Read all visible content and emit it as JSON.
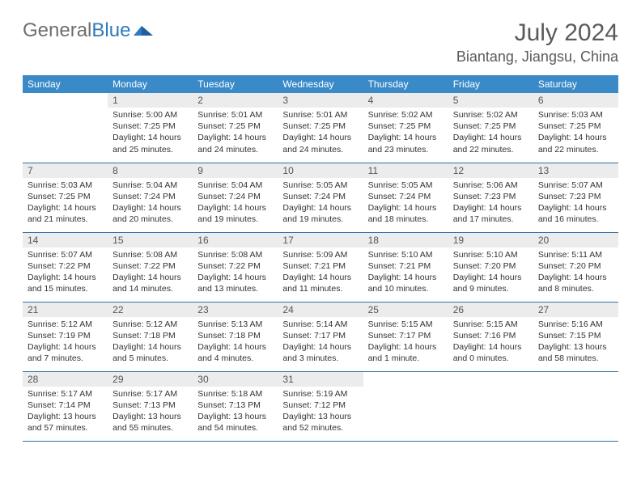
{
  "logo": {
    "word1": "General",
    "word2": "Blue"
  },
  "header": {
    "title": "July 2024",
    "location": "Biantang, Jiangsu, China"
  },
  "colors": {
    "header_bg": "#3a8ac8",
    "daynum_bg": "#ececec",
    "row_border": "#2f6fa8",
    "logo_gray": "#6e6e6e",
    "logo_blue": "#2f7bbf"
  },
  "weekdays": [
    "Sunday",
    "Monday",
    "Tuesday",
    "Wednesday",
    "Thursday",
    "Friday",
    "Saturday"
  ],
  "firstDayOffset": 1,
  "days": [
    {
      "n": 1,
      "sunrise": "5:00 AM",
      "sunset": "7:25 PM",
      "daylight": "14 hours and 25 minutes."
    },
    {
      "n": 2,
      "sunrise": "5:01 AM",
      "sunset": "7:25 PM",
      "daylight": "14 hours and 24 minutes."
    },
    {
      "n": 3,
      "sunrise": "5:01 AM",
      "sunset": "7:25 PM",
      "daylight": "14 hours and 24 minutes."
    },
    {
      "n": 4,
      "sunrise": "5:02 AM",
      "sunset": "7:25 PM",
      "daylight": "14 hours and 23 minutes."
    },
    {
      "n": 5,
      "sunrise": "5:02 AM",
      "sunset": "7:25 PM",
      "daylight": "14 hours and 22 minutes."
    },
    {
      "n": 6,
      "sunrise": "5:03 AM",
      "sunset": "7:25 PM",
      "daylight": "14 hours and 22 minutes."
    },
    {
      "n": 7,
      "sunrise": "5:03 AM",
      "sunset": "7:25 PM",
      "daylight": "14 hours and 21 minutes."
    },
    {
      "n": 8,
      "sunrise": "5:04 AM",
      "sunset": "7:24 PM",
      "daylight": "14 hours and 20 minutes."
    },
    {
      "n": 9,
      "sunrise": "5:04 AM",
      "sunset": "7:24 PM",
      "daylight": "14 hours and 19 minutes."
    },
    {
      "n": 10,
      "sunrise": "5:05 AM",
      "sunset": "7:24 PM",
      "daylight": "14 hours and 19 minutes."
    },
    {
      "n": 11,
      "sunrise": "5:05 AM",
      "sunset": "7:24 PM",
      "daylight": "14 hours and 18 minutes."
    },
    {
      "n": 12,
      "sunrise": "5:06 AM",
      "sunset": "7:23 PM",
      "daylight": "14 hours and 17 minutes."
    },
    {
      "n": 13,
      "sunrise": "5:07 AM",
      "sunset": "7:23 PM",
      "daylight": "14 hours and 16 minutes."
    },
    {
      "n": 14,
      "sunrise": "5:07 AM",
      "sunset": "7:22 PM",
      "daylight": "14 hours and 15 minutes."
    },
    {
      "n": 15,
      "sunrise": "5:08 AM",
      "sunset": "7:22 PM",
      "daylight": "14 hours and 14 minutes."
    },
    {
      "n": 16,
      "sunrise": "5:08 AM",
      "sunset": "7:22 PM",
      "daylight": "14 hours and 13 minutes."
    },
    {
      "n": 17,
      "sunrise": "5:09 AM",
      "sunset": "7:21 PM",
      "daylight": "14 hours and 11 minutes."
    },
    {
      "n": 18,
      "sunrise": "5:10 AM",
      "sunset": "7:21 PM",
      "daylight": "14 hours and 10 minutes."
    },
    {
      "n": 19,
      "sunrise": "5:10 AM",
      "sunset": "7:20 PM",
      "daylight": "14 hours and 9 minutes."
    },
    {
      "n": 20,
      "sunrise": "5:11 AM",
      "sunset": "7:20 PM",
      "daylight": "14 hours and 8 minutes."
    },
    {
      "n": 21,
      "sunrise": "5:12 AM",
      "sunset": "7:19 PM",
      "daylight": "14 hours and 7 minutes."
    },
    {
      "n": 22,
      "sunrise": "5:12 AM",
      "sunset": "7:18 PM",
      "daylight": "14 hours and 5 minutes."
    },
    {
      "n": 23,
      "sunrise": "5:13 AM",
      "sunset": "7:18 PM",
      "daylight": "14 hours and 4 minutes."
    },
    {
      "n": 24,
      "sunrise": "5:14 AM",
      "sunset": "7:17 PM",
      "daylight": "14 hours and 3 minutes."
    },
    {
      "n": 25,
      "sunrise": "5:15 AM",
      "sunset": "7:17 PM",
      "daylight": "14 hours and 1 minute."
    },
    {
      "n": 26,
      "sunrise": "5:15 AM",
      "sunset": "7:16 PM",
      "daylight": "14 hours and 0 minutes."
    },
    {
      "n": 27,
      "sunrise": "5:16 AM",
      "sunset": "7:15 PM",
      "daylight": "13 hours and 58 minutes."
    },
    {
      "n": 28,
      "sunrise": "5:17 AM",
      "sunset": "7:14 PM",
      "daylight": "13 hours and 57 minutes."
    },
    {
      "n": 29,
      "sunrise": "5:17 AM",
      "sunset": "7:13 PM",
      "daylight": "13 hours and 55 minutes."
    },
    {
      "n": 30,
      "sunrise": "5:18 AM",
      "sunset": "7:13 PM",
      "daylight": "13 hours and 54 minutes."
    },
    {
      "n": 31,
      "sunrise": "5:19 AM",
      "sunset": "7:12 PM",
      "daylight": "13 hours and 52 minutes."
    }
  ],
  "labels": {
    "sunrise": "Sunrise:",
    "sunset": "Sunset:",
    "daylight": "Daylight:"
  }
}
